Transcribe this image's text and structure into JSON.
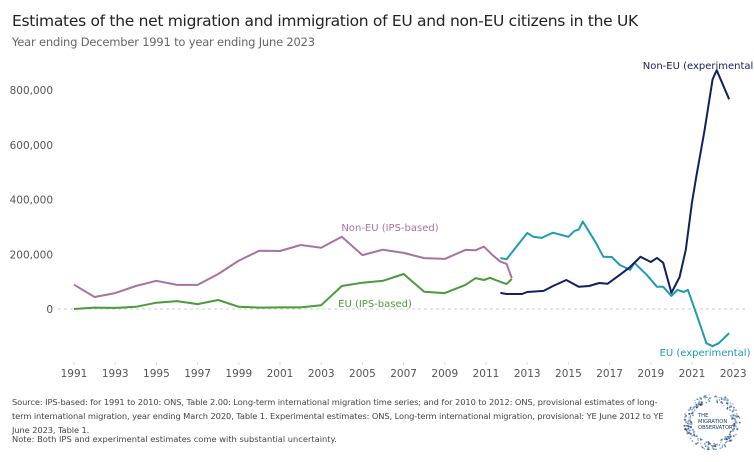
{
  "chart_data": {
    "type": "line",
    "title": "Estimates of the net migration and immigration of EU and non-EU citizens in the UK",
    "subtitle": "Year ending December 1991 to year ending June 2023",
    "xlabel": "",
    "ylabel": "",
    "xlim": [
      1991,
      2023
    ],
    "ylim": [
      -150000,
      900000
    ],
    "x_ticks": [
      "1991",
      "1993",
      "1995",
      "1997",
      "1999",
      "2001",
      "2003",
      "2005",
      "2007",
      "2009",
      "2011",
      "2013",
      "2015",
      "2017",
      "2019",
      "2021",
      "2023"
    ],
    "y_ticks": [
      {
        "value": 0,
        "label": "0"
      },
      {
        "value": 200000,
        "label": "200,000"
      },
      {
        "value": 400000,
        "label": "400,000"
      },
      {
        "value": 600000,
        "label": "600,000"
      },
      {
        "value": 800000,
        "label": "800,000"
      }
    ],
    "zero_line": "dashed",
    "grid": false,
    "series": [
      {
        "name": "Non-EU (IPS-based)",
        "color": "#a8739f",
        "x": [
          1991,
          1992,
          1993,
          1994,
          1995,
          1996,
          1997,
          1998,
          1999,
          2000,
          2001,
          2002,
          2003,
          2004,
          2005,
          2006,
          2007,
          2008,
          2009,
          2010,
          2010.5,
          2010.9,
          2011.3,
          2011.7,
          2012,
          2012.25
        ],
        "y": [
          89000,
          44000,
          58000,
          84000,
          103000,
          88000,
          88000,
          128000,
          177000,
          213000,
          212000,
          234000,
          224000,
          264000,
          197000,
          217000,
          205000,
          186000,
          183000,
          216000,
          215000,
          228000,
          198000,
          173000,
          165000,
          113000
        ]
      },
      {
        "name": "EU (IPS-based)",
        "color": "#4c9a3c",
        "x": [
          1991,
          1992,
          1993,
          1994,
          1995,
          1996,
          1997,
          1998,
          1999,
          2000,
          2001,
          2002,
          2003,
          2004,
          2005,
          2006,
          2007,
          2008,
          2009,
          2010,
          2010.5,
          2010.9,
          2011.2,
          2011.5,
          2012,
          2012.25
        ],
        "y": [
          0,
          5000,
          4000,
          8000,
          23000,
          29000,
          18000,
          33000,
          8000,
          5000,
          6000,
          6000,
          14000,
          84000,
          96000,
          103000,
          128000,
          63000,
          58000,
          88000,
          113000,
          106000,
          114000,
          105000,
          91000,
          110000
        ]
      },
      {
        "name": "EU (experimental)",
        "color": "#1e9bb3",
        "x": [
          2011.7,
          2012.0,
          2013.0,
          2013.3,
          2013.7,
          2014.25,
          2015.0,
          2015.3,
          2015.5,
          2015.7,
          2016.3,
          2016.7,
          2017.1,
          2017.5,
          2018.0,
          2018.2,
          2018.8,
          2019.3,
          2019.6,
          2020.0,
          2020.3,
          2020.6,
          2020.8,
          2021.2,
          2021.7,
          2022.0,
          2022.3,
          2022.8
        ],
        "y": [
          186000,
          182000,
          278000,
          264000,
          260000,
          279000,
          264000,
          286000,
          290000,
          320000,
          246000,
          191000,
          190000,
          161000,
          143000,
          169000,
          125000,
          81000,
          81000,
          48000,
          70000,
          62000,
          70000,
          -15000,
          -125000,
          -136000,
          -125000,
          -88000
        ]
      },
      {
        "name": "Non-EU (experimental)",
        "color": "#13205e",
        "x": [
          2011.7,
          2012.0,
          2012.75,
          2013.0,
          2013.8,
          2014.25,
          2014.9,
          2015.5,
          2016.0,
          2016.5,
          2016.9,
          2017.5,
          2018.0,
          2018.5,
          2019.0,
          2019.3,
          2019.6,
          2020.0,
          2020.4,
          2020.7,
          2021.0,
          2021.2,
          2021.6,
          2022.0,
          2022.2,
          2022.8
        ],
        "y": [
          59000,
          55000,
          55000,
          62000,
          66000,
          84000,
          106000,
          81000,
          84000,
          95000,
          92000,
          125000,
          154000,
          191000,
          172000,
          187000,
          169000,
          59000,
          117000,
          217000,
          390000,
          480000,
          650000,
          840000,
          873000,
          767000
        ]
      }
    ]
  },
  "source": "Source: IPS-based: for 1991 to 2010: ONS, Table 2.00: Long-term international migration time series; and for 2010 to 2012: ONS, provisional estimates of long-term international migration, year ending March 2020, Table 1. Experimental estimates: ONS, Long-term international migration, provisional: YE June 2012 to YE June 2023, Table 1.",
  "note": "Note: Both IPS and experimental estimates come with substantial uncertainty.",
  "logo": {
    "text": "THE MIGRATION OBSERVATORY",
    "color": "#1b3a6b"
  }
}
